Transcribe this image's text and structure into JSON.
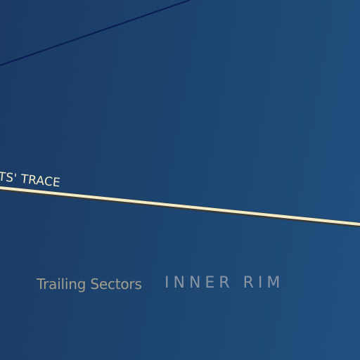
{
  "map": {
    "route": {
      "label": "ITS' TRACE",
      "color": "#f3ecc8",
      "outline_color": "#3a3a36"
    },
    "border": {
      "color": "#0a1a55"
    },
    "regions": {
      "trailing_sectors": "Trailing Sectors",
      "inner_rim": "INNER RIM"
    },
    "background": {
      "start_color": "#1a3a63",
      "end_color": "#21507f"
    }
  }
}
